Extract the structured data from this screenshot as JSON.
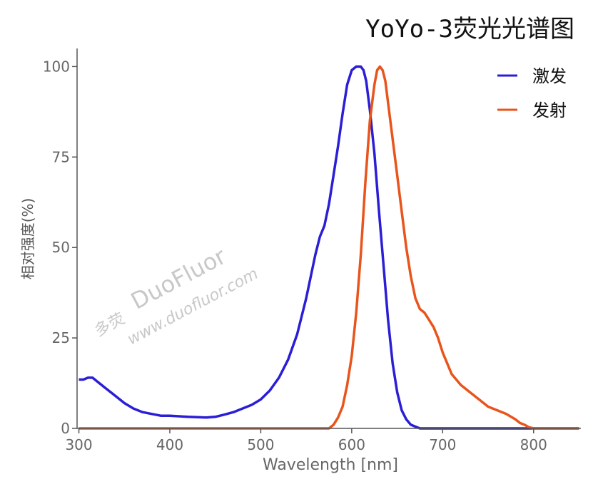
{
  "chart_data": {
    "type": "line",
    "title": "YoYo-3荧光光谱图",
    "xlabel": "Wavelength [nm]",
    "ylabel": "相对强度(%)",
    "xlim": [
      298,
      852
    ],
    "ylim": [
      0,
      105
    ],
    "x_ticks": [
      "300",
      "400",
      "500",
      "600",
      "700",
      "800"
    ],
    "y_ticks": [
      "0",
      "25",
      "50",
      "75",
      "100"
    ],
    "grid": false,
    "legend_position": "top-right",
    "series": [
      {
        "name": "激发",
        "color": "#2a1ed6",
        "x": [
          300,
          305,
          310,
          315,
          320,
          330,
          340,
          350,
          360,
          370,
          380,
          390,
          400,
          420,
          440,
          450,
          460,
          470,
          480,
          490,
          500,
          510,
          520,
          530,
          540,
          550,
          560,
          565,
          570,
          575,
          580,
          585,
          590,
          595,
          600,
          605,
          610,
          613,
          616,
          620,
          625,
          630,
          635,
          640,
          645,
          650,
          655,
          660,
          665,
          670,
          675,
          680,
          700,
          750,
          800,
          850
        ],
        "values": [
          13.5,
          13.5,
          14,
          14,
          13,
          11,
          9,
          7,
          5.5,
          4.5,
          4,
          3.5,
          3.5,
          3.2,
          3.0,
          3.2,
          3.8,
          4.5,
          5.5,
          6.5,
          8,
          10.5,
          14,
          19,
          26,
          36,
          48,
          53,
          56,
          62,
          70,
          78,
          87,
          95,
          99,
          100,
          100,
          99,
          96,
          88,
          76,
          60,
          45,
          30,
          18,
          10,
          5,
          2.5,
          1,
          0.5,
          0,
          0,
          0,
          0,
          0,
          0
        ]
      },
      {
        "name": "发射",
        "color": "#e8541c",
        "x": [
          300,
          400,
          500,
          575,
          580,
          585,
          590,
          595,
          600,
          605,
          610,
          615,
          620,
          625,
          628,
          631,
          634,
          637,
          640,
          645,
          650,
          655,
          660,
          665,
          670,
          675,
          680,
          685,
          690,
          695,
          700,
          710,
          720,
          730,
          740,
          750,
          760,
          770,
          780,
          785,
          790,
          795,
          800,
          850
        ],
        "values": [
          0,
          0,
          0,
          0,
          1,
          3,
          6,
          12,
          20,
          32,
          48,
          68,
          85,
          95,
          99,
          100,
          99,
          96,
          90,
          80,
          70,
          60,
          50,
          42,
          36,
          33,
          32,
          30,
          28,
          25,
          21,
          15,
          12,
          10,
          8,
          6,
          5,
          4,
          2.5,
          1.5,
          1,
          0.3,
          0,
          0
        ]
      }
    ]
  },
  "watermark": {
    "brand": "DuoFluor",
    "cn": "多荧",
    "url": "www.duofluor.com"
  }
}
